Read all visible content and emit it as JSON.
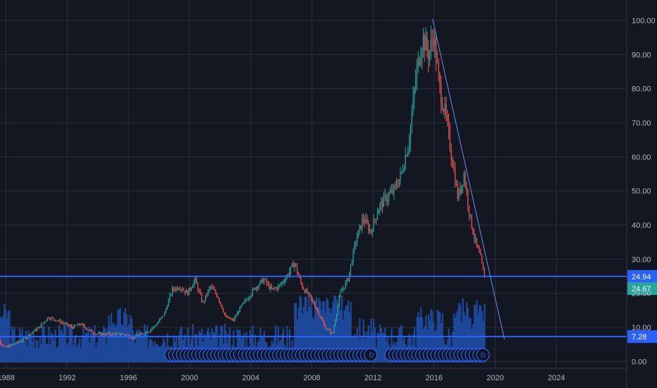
{
  "chart_data": {
    "type": "line",
    "style": "candlestick",
    "x_axis": {
      "ticks": [
        "1988",
        "1992",
        "1996",
        "2000",
        "2004",
        "2008",
        "2012",
        "2016",
        "2020",
        "2024"
      ],
      "range": [
        1987.6,
        2028.6
      ]
    },
    "y_axis": {
      "ticks": [
        "100.00",
        "90.00",
        "80.00",
        "70.00",
        "60.00",
        "50.00",
        "40.00",
        "30.00",
        "20.00",
        "10.00",
        "0.00"
      ],
      "range": [
        -2.0,
        106.0
      ],
      "position": "right"
    },
    "grid": true,
    "legend": "none",
    "colors": {
      "background": "#131722",
      "grid": "#2a2e39",
      "up": "#26a69a",
      "down": "#ef5350",
      "volume": "#1e4fa8",
      "level_line": "#2962ff",
      "trendline": "#5b7bd5",
      "axis_text": "#b2b5be",
      "last_price_tag": "#26a69a"
    },
    "series": [
      {
        "x": [
          1987.0,
          1987.6,
          1988.0,
          1988.5,
          1989.0,
          1989.6,
          1990.2,
          1990.8,
          1991.4,
          1991.9,
          1992.4,
          1992.9,
          1993.5,
          1994.0,
          1994.6,
          1995.2,
          1995.8,
          1996.3,
          1996.9,
          1997.4,
          1997.9,
          1998.4,
          1998.9,
          1999.4,
          1999.9,
          2000.4,
          2000.9,
          2001.4,
          2001.9,
          2002.4,
          2002.9,
          2003.4,
          2003.9,
          2004.4,
          2004.9,
          2005.4,
          2005.9,
          2006.4,
          2006.9,
          2007.4,
          2007.9,
          2008.4,
          2008.9,
          2009.4,
          2009.9,
          2010.4,
          2010.9,
          2011.4,
          2011.9,
          2012.4,
          2012.9,
          2013.4,
          2013.9,
          2014.4,
          2014.9,
          2015.3,
          2015.7,
          2016.0,
          2016.4,
          2016.8,
          2017.2,
          2017.6,
          2018.0,
          2018.4,
          2018.8,
          2019.1,
          2019.3
        ],
        "values": [
          9,
          6,
          4,
          5,
          6,
          8,
          10,
          13,
          12,
          11,
          10,
          11,
          9,
          8,
          8,
          8,
          8,
          7,
          8,
          9,
          11,
          14,
          21,
          22,
          20,
          24,
          17,
          22,
          19,
          13,
          12,
          16,
          19,
          22,
          24,
          21,
          22,
          25,
          29,
          22,
          19,
          15,
          10,
          8,
          20,
          24,
          35,
          42,
          38,
          45,
          48,
          50,
          55,
          65,
          85,
          95,
          90,
          96,
          80,
          72,
          60,
          48,
          55,
          42,
          34,
          30,
          25
        ]
      }
    ],
    "volume_bars_per_year": 12,
    "dividend_markers": {
      "label": "D",
      "ranges": [
        [
          1998.8,
          2003.4
        ],
        [
          2003.6,
          2011.9
        ],
        [
          2013.2,
          2019.2
        ]
      ]
    },
    "horizontal_levels": [
      "24.94",
      "7.28"
    ],
    "last_price": "24.67",
    "trendline": {
      "from": [
        2015.9,
        100.5
      ],
      "to": [
        2020.6,
        6.5
      ]
    }
  }
}
